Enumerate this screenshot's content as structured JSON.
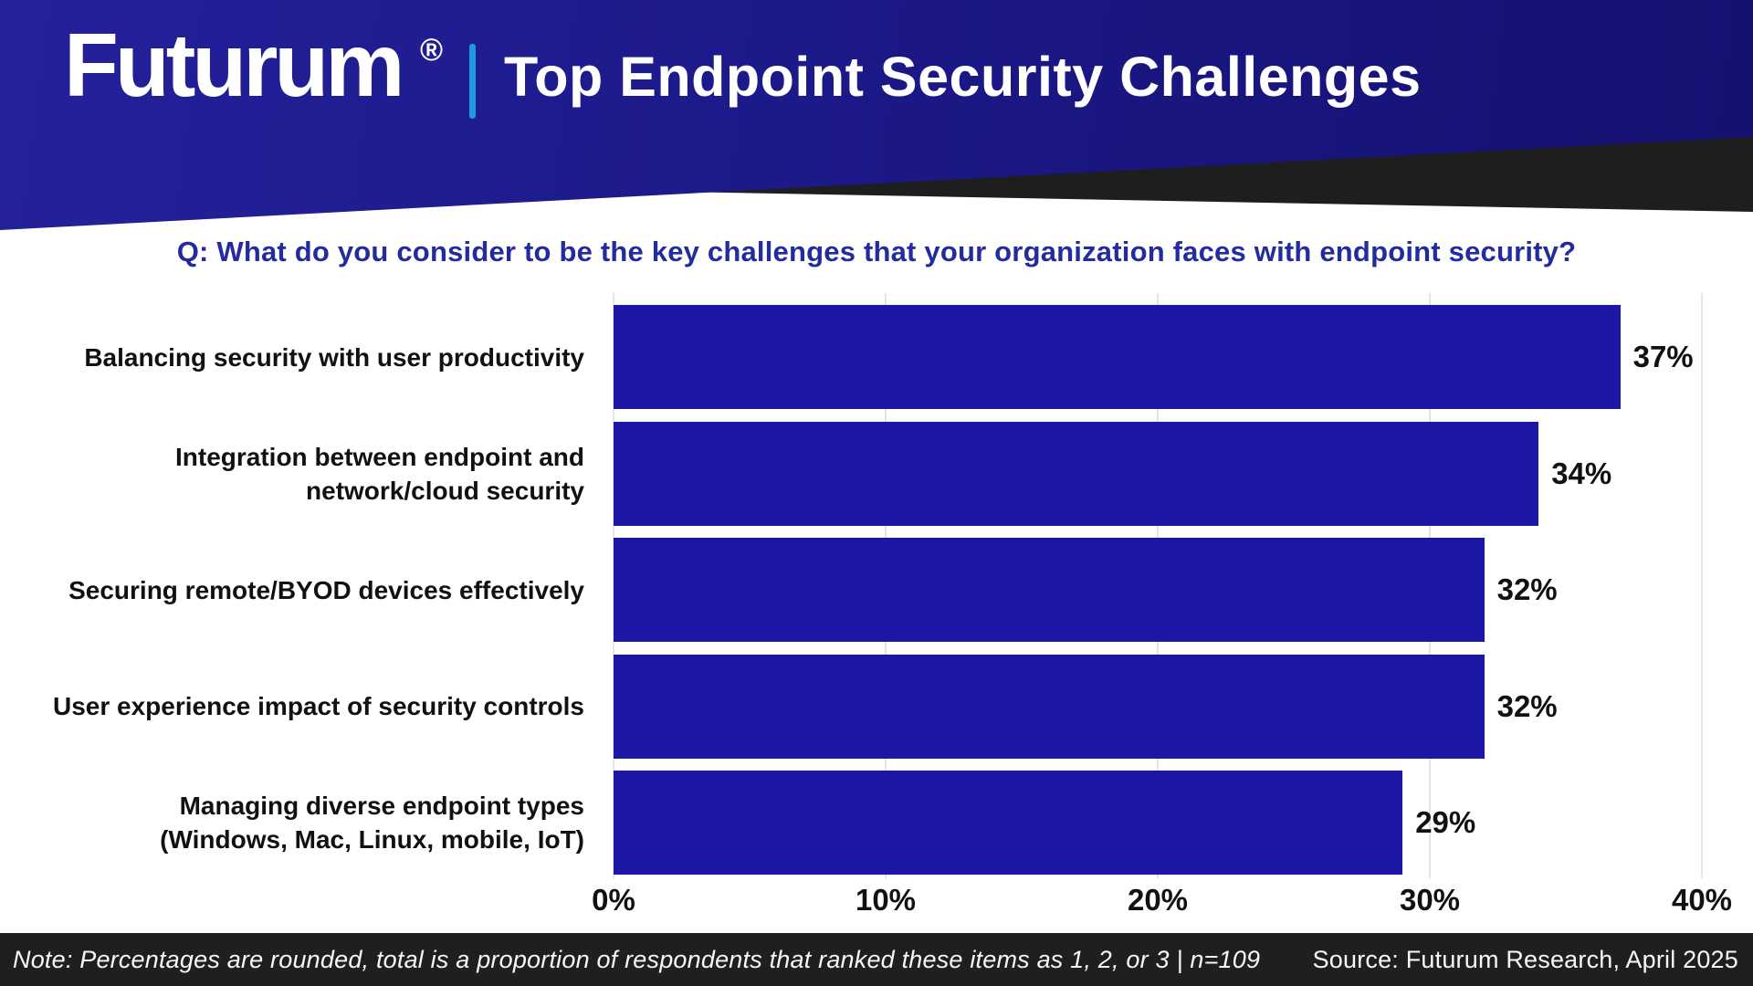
{
  "header": {
    "logo_text": "Futurum",
    "registered_mark": "®",
    "title": "Top Endpoint Security Challenges",
    "accent_color": "#1f97e3",
    "background_color": "#1c1989"
  },
  "question": {
    "text": "Q: What do you consider to be the key challenges that your organization faces with endpoint security?",
    "color": "#232c9f"
  },
  "chart_data": {
    "type": "bar",
    "orientation": "horizontal",
    "title": "Top Endpoint Security Challenges",
    "categories": [
      "Balancing security with user productivity",
      "Integration between endpoint and\nnetwork/cloud security",
      "Securing remote/BYOD devices effectively",
      "User experience impact of security controls",
      "Managing diverse endpoint types\n(Windows, Mac, Linux, mobile, IoT)"
    ],
    "values": [
      37,
      34,
      32,
      32,
      29
    ],
    "value_labels": [
      "37%",
      "34%",
      "32%",
      "32%",
      "29%"
    ],
    "x_ticks": [
      "0%",
      "10%",
      "20%",
      "30%",
      "40%"
    ],
    "x_tick_values": [
      0,
      10,
      20,
      30,
      40
    ],
    "xlim": [
      0,
      40
    ],
    "xlabel": "",
    "ylabel": "",
    "grid": true,
    "legend_position": "none",
    "bar_color": "#1c17a6"
  },
  "footer": {
    "note": "Note: Percentages are rounded, total is a proportion of respondents that ranked these items as 1, 2, or 3 | n=109",
    "source": "Source: Futurum Research, April 2025",
    "background_color": "#1f1f1f"
  }
}
